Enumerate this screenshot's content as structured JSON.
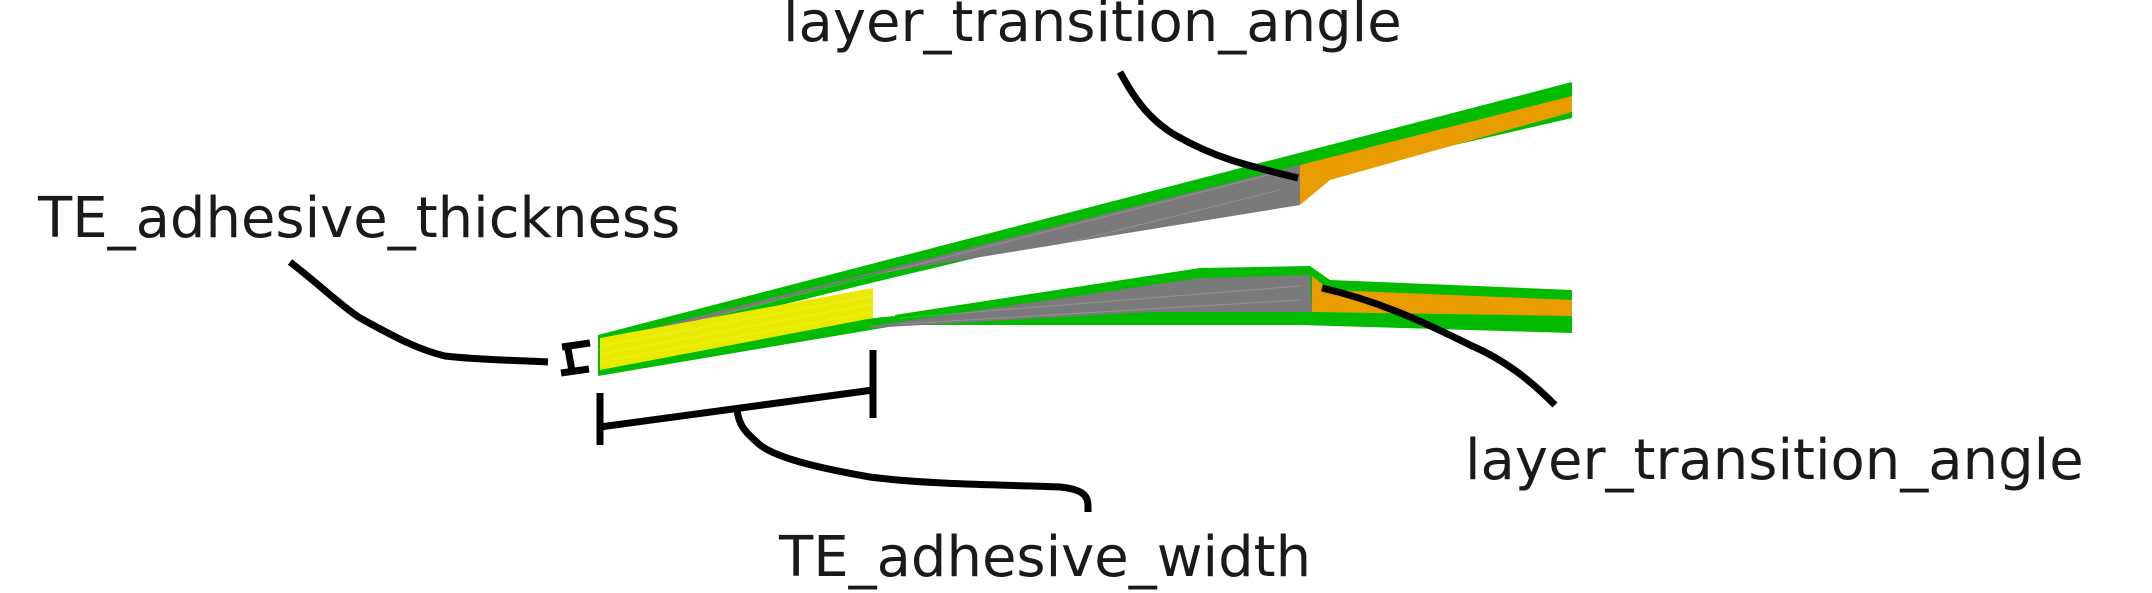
{
  "labels": {
    "layer_transition_angle_top": "layer_transition_angle",
    "te_adhesive_thickness": "TE_adhesive_thickness",
    "layer_transition_angle_right": "layer_transition_angle",
    "te_adhesive_width": "TE_adhesive_width"
  },
  "colors": {
    "skin": "#00bb00",
    "core": "#7a7a7a",
    "spar_cap": "#e89c00",
    "adhesive": "#eaea00",
    "leader": "#000000",
    "text": "#1a1a1a"
  }
}
